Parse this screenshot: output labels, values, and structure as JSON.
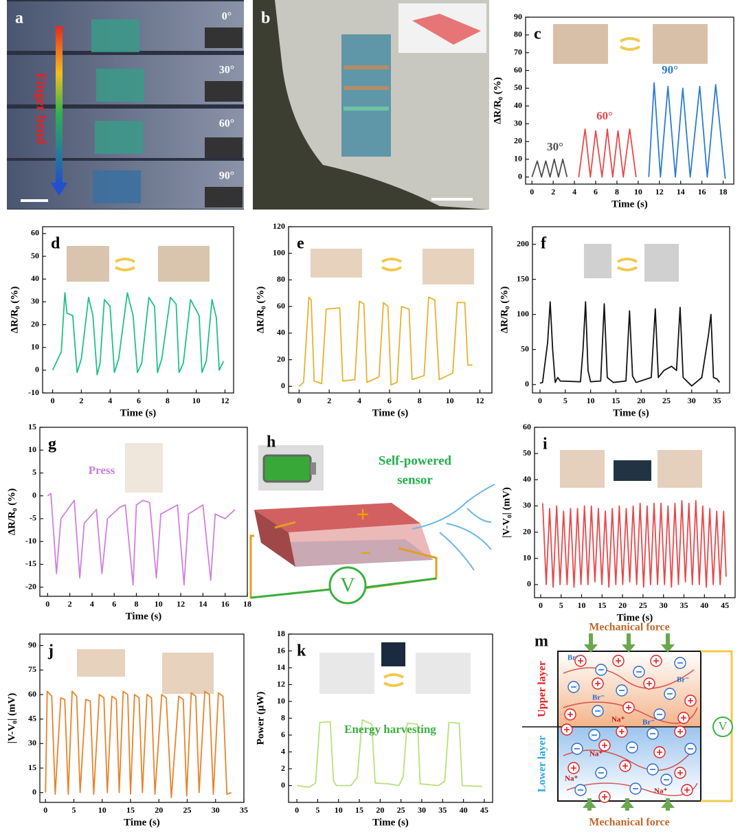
{
  "chart_data": [
    {
      "type": "line",
      "panel": "c",
      "xlabel": "Time (s)",
      "ylabel": "ΔR/R₀ (%)",
      "xlim": [
        -0.6,
        19
      ],
      "ylim": [
        -4,
        90
      ],
      "xticks": [
        0,
        2,
        4,
        6,
        8,
        10,
        12,
        14,
        16,
        18
      ],
      "yticks": [
        0,
        10,
        20,
        30,
        40,
        50,
        60,
        70,
        80,
        90
      ],
      "series": [
        {
          "name": "30°",
          "color": "#4d4d4d",
          "x": [
            0,
            0.5,
            0.9,
            1.3,
            1.7,
            2.1,
            2.5,
            2.9,
            3.3
          ],
          "values": [
            0,
            9,
            0,
            9,
            0,
            10,
            0,
            10,
            0
          ]
        },
        {
          "name": "60°",
          "color": "#e8474a",
          "x": [
            4.4,
            5,
            5.5,
            6,
            6.6,
            7.1,
            7.6,
            8.1,
            8.6,
            9.2,
            9.8
          ],
          "values": [
            0,
            27,
            0,
            26,
            0,
            27,
            0,
            26,
            0,
            27,
            0
          ]
        },
        {
          "name": "90°",
          "color": "#2a7bd4",
          "x": [
            11,
            11.5,
            12.1,
            12.8,
            13.5,
            14.2,
            14.9,
            15.8,
            16.5,
            17.3,
            18.2
          ],
          "values": [
            0,
            53,
            0,
            51,
            0,
            50,
            0,
            51,
            0,
            52,
            -1
          ]
        }
      ]
    },
    {
      "type": "line",
      "panel": "d",
      "xlabel": "Time (s)",
      "ylabel": "ΔR/R₀ (%)",
      "color": "#1fbf8a",
      "xlim": [
        -0.7,
        12.6
      ],
      "ylim": [
        -10,
        63
      ],
      "xticks": [
        0,
        2,
        4,
        6,
        8,
        10,
        12
      ],
      "yticks": [
        -10,
        0,
        10,
        20,
        30,
        40,
        50,
        60
      ],
      "x": [
        0,
        0.6,
        0.85,
        1.0,
        1.4,
        1.7,
        2.0,
        2.5,
        2.8,
        3.1,
        3.3,
        3.6,
        4.0,
        4.3,
        4.6,
        5.2,
        5.6,
        5.9,
        6.2,
        6.7,
        7.1,
        7.3,
        7.6,
        8.2,
        8.6,
        8.8,
        9.1,
        9.6,
        10.2,
        10.4,
        10.7,
        11.1,
        11.4,
        11.6,
        11.9
      ],
      "values": [
        0,
        8,
        34,
        25,
        24,
        -1,
        5,
        32,
        24,
        -2,
        3,
        31,
        28,
        -1,
        5,
        34,
        24,
        -1,
        3,
        32,
        28,
        -1,
        5,
        32,
        29,
        -1,
        3,
        31,
        24,
        -1,
        4,
        31,
        23,
        0,
        4
      ]
    },
    {
      "type": "line",
      "panel": "e",
      "xlabel": "Time (s)",
      "ylabel": "ΔR/R₀ (%)",
      "color": "#e8b030",
      "xlim": [
        -0.7,
        12.8
      ],
      "ylim": [
        -5,
        120
      ],
      "xticks": [
        0,
        2,
        4,
        6,
        8,
        10,
        12
      ],
      "yticks": [
        0,
        20,
        40,
        60,
        80,
        100,
        120
      ],
      "x": [
        0,
        0.3,
        0.65,
        0.8,
        1.0,
        1.5,
        1.8,
        2.7,
        2.9,
        3.7,
        4.0,
        4.3,
        4.5,
        5.3,
        5.6,
        5.9,
        6.1,
        6.5,
        6.8,
        7.3,
        7.5,
        8.3,
        8.6,
        9.0,
        9.3,
        10.2,
        10.5,
        11.0,
        11.2,
        11.5
      ],
      "values": [
        0,
        3,
        67,
        65,
        4,
        2,
        58,
        59,
        4,
        5,
        64,
        62,
        3,
        7,
        63,
        60,
        1,
        3,
        60,
        58,
        5,
        8,
        67,
        65,
        5,
        10,
        63,
        63,
        16,
        16
      ]
    },
    {
      "type": "line",
      "panel": "f",
      "xlabel": "Time (s)",
      "ylabel": "ΔR/R₀ (%)",
      "color": "#111111",
      "xlim": [
        -1.5,
        37.5
      ],
      "ylim": [
        -12,
        225
      ],
      "xticks": [
        0,
        5,
        10,
        15,
        20,
        25,
        30,
        35
      ],
      "yticks": [
        0,
        50,
        100,
        150,
        200
      ],
      "x": [
        0,
        0.5,
        1.5,
        2.0,
        2.5,
        3,
        3.5,
        4,
        8,
        8.5,
        9,
        9.5,
        10,
        12,
        12.7,
        13.3,
        14.5,
        17,
        17.7,
        18.3,
        19,
        22,
        22.8,
        23.4,
        24.5,
        26,
        27,
        27.7,
        28.3,
        30,
        32,
        33.3,
        33.8,
        34.3,
        35,
        35.5
      ],
      "values": [
        2,
        3,
        60,
        118,
        50,
        3,
        10,
        5,
        4,
        50,
        118,
        20,
        4,
        5,
        115,
        10,
        3,
        5,
        105,
        12,
        3,
        10,
        108,
        10,
        20,
        26,
        20,
        110,
        10,
        -2,
        10,
        70,
        100,
        10,
        8,
        3
      ]
    },
    {
      "type": "line",
      "panel": "g",
      "xlabel": "Time (s)",
      "ylabel": "ΔR/R₀ (%)",
      "color": "#d07ee0",
      "annotations": [
        "Press"
      ],
      "xlim": [
        -0.7,
        18
      ],
      "ylim": [
        -22,
        15
      ],
      "xticks": [
        0,
        2,
        4,
        6,
        8,
        10,
        12,
        14,
        16,
        18
      ],
      "yticks": [
        -20,
        -15,
        -10,
        -5,
        0,
        5,
        10,
        15
      ],
      "x": [
        0,
        0.3,
        0.8,
        1.2,
        2.4,
        2.9,
        3.3,
        4.4,
        4.9,
        5.4,
        6.5,
        7.0,
        7.7,
        8.0,
        8.6,
        9.2,
        9.8,
        10.2,
        11.7,
        12.3,
        12.7,
        14.0,
        14.7,
        15.1,
        16.0,
        16.9
      ],
      "values": [
        0,
        0.5,
        -17,
        -5,
        -1,
        -18,
        -6,
        -3,
        -17,
        -5,
        -2.5,
        -2,
        -19.5,
        -2,
        -1,
        -1.5,
        -18,
        -4,
        -2,
        -19.5,
        -4,
        -2,
        -18.5,
        -4,
        -5,
        -3
      ]
    },
    {
      "type": "line",
      "panel": "i",
      "xlabel": "Time (s)",
      "ylabel": "|V-V₀| (mV)",
      "color": "#e8474a",
      "xlim": [
        -1.5,
        47.5
      ],
      "ylim": [
        -5,
        60
      ],
      "xticks": [
        0,
        5,
        10,
        15,
        20,
        25,
        30,
        35,
        40,
        45
      ],
      "yticks": [
        0,
        10,
        20,
        30,
        40,
        50,
        60
      ],
      "x": [
        0.5,
        1.35,
        2.2,
        3.05,
        3.9,
        4.75,
        5.6,
        6.45,
        7.3,
        8.15,
        9,
        9.85,
        10.7,
        11.55,
        12.4,
        13.25,
        14.1,
        14.95,
        15.8,
        16.65,
        17.5,
        18.35,
        19.2,
        20.05,
        20.9,
        21.75,
        22.6,
        23.45,
        24.3,
        25.15,
        26,
        26.85,
        27.7,
        28.55,
        29.4,
        30.25,
        31.1,
        31.95,
        32.8,
        33.65,
        34.5,
        35.35,
        36.2,
        37.05,
        37.9,
        38.75,
        39.6,
        40.45,
        41.3,
        42.15,
        43,
        43.85,
        44.7,
        45.3
      ],
      "values": [
        31,
        0,
        29,
        -1,
        30,
        0,
        28,
        0,
        29,
        -1,
        29,
        0,
        30,
        0,
        30,
        1,
        29,
        0,
        28,
        -1,
        29,
        0,
        30,
        0,
        29,
        1,
        30,
        0,
        31,
        -1,
        30,
        0,
        31,
        0,
        31,
        0,
        30,
        -1,
        31,
        0,
        32,
        1,
        31,
        0,
        32,
        0,
        30,
        -1,
        29,
        0,
        28,
        0,
        28,
        3
      ]
    },
    {
      "type": "line",
      "panel": "j",
      "xlabel": "Time (s)",
      "ylabel": "|V-V₀| (mV)",
      "color": "#e8822a",
      "xlim": [
        -1,
        35
      ],
      "ylim": [
        -6,
        97
      ],
      "xticks": [
        0,
        5,
        10,
        15,
        20,
        25,
        30,
        35
      ],
      "yticks": [
        0,
        15,
        30,
        45,
        60,
        75,
        90
      ],
      "x": [
        0,
        0.3,
        1.1,
        1.7,
        2.7,
        3.4,
        4.0,
        4.7,
        5.5,
        6.1,
        7.1,
        7.9,
        8.5,
        9.5,
        10.3,
        10.9,
        11.7,
        12.5,
        13.0,
        13.7,
        14.5,
        15.0,
        15.7,
        16.5,
        17.1,
        17.9,
        18.7,
        19.3,
        20.5,
        21.3,
        22.2,
        23.5,
        24.3,
        24.9,
        25.7,
        26.5,
        27.1,
        28.1,
        28.9,
        29.6,
        30.5,
        31.3,
        32.0,
        32.8
      ],
      "values": [
        0,
        62,
        59,
        -1,
        58,
        57,
        -1,
        62,
        59,
        0,
        57,
        56,
        -1,
        60,
        58,
        0,
        59,
        57,
        0,
        62,
        60,
        -1,
        60,
        58,
        0,
        60,
        58,
        -1,
        60,
        58,
        -3,
        59,
        57,
        -2,
        61,
        59,
        0,
        62,
        60,
        -1,
        61,
        59,
        -1,
        0
      ]
    },
    {
      "type": "line",
      "panel": "k",
      "xlabel": "Time (s)",
      "ylabel": "Power (μW)",
      "color": "#b8e07a",
      "annotations": [
        "Energy harvesting"
      ],
      "xlim": [
        -2,
        47
      ],
      "ylim": [
        -2,
        18
      ],
      "xticks": [
        0,
        5,
        10,
        15,
        20,
        25,
        30,
        35,
        40,
        45
      ],
      "yticks": [
        0,
        2,
        4,
        6,
        8,
        10,
        12,
        14,
        16,
        18
      ],
      "x": [
        0,
        3,
        4.5,
        5.5,
        8,
        8.8,
        9.5,
        13,
        14.5,
        15.7,
        18,
        18.8,
        22,
        24.5,
        25.5,
        26.5,
        29,
        29.6,
        34,
        35.5,
        36.5,
        39,
        39.7,
        44.5
      ],
      "values": [
        0,
        -0.2,
        0.3,
        7.5,
        7.6,
        0.5,
        0,
        0,
        1,
        7.8,
        7.3,
        0.3,
        0.2,
        0,
        1,
        7.4,
        7.3,
        0.2,
        0,
        0.5,
        7.5,
        7.4,
        0,
        -0.1
      ]
    }
  ],
  "panels": {
    "a": {
      "label": "a",
      "angles": [
        "0°",
        "30°",
        "60°",
        "90°"
      ],
      "arrow_label": "Finger bend"
    },
    "b": {
      "label": "b"
    },
    "h": {
      "label": "h",
      "title": [
        "Self-powered",
        "sensor"
      ],
      "plus": "+",
      "minus": "−",
      "meter": "V"
    },
    "m": {
      "label": "m",
      "force": "Mechanical force",
      "upper": "Upper layer",
      "lower": "Lower layer",
      "meter": "V",
      "anion": "Br⁻",
      "cation": "Na⁺"
    }
  }
}
